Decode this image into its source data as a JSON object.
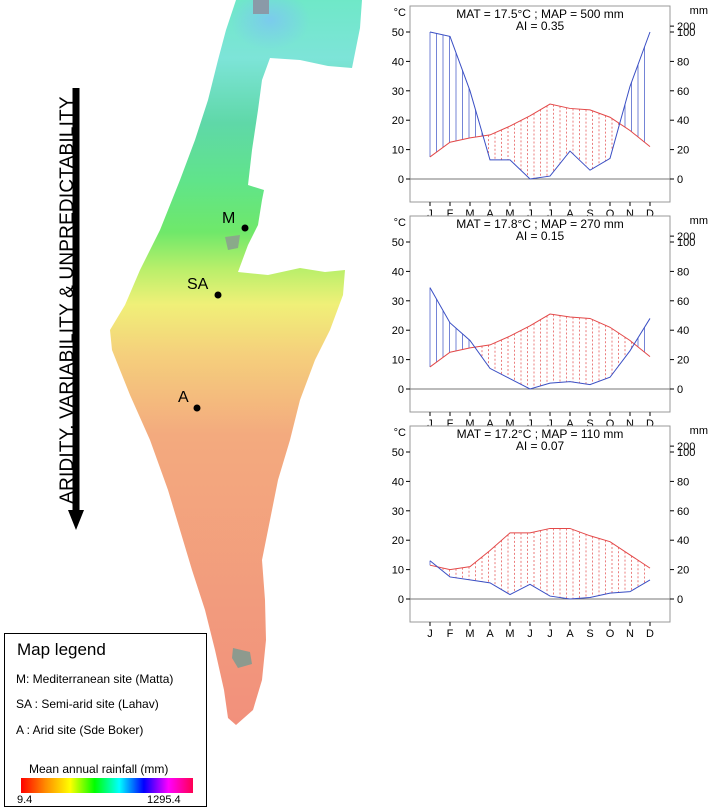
{
  "arrow_label": "ARIDITY, VARIABILITY & UNPREDICTABILITY",
  "sites": [
    {
      "id": "M",
      "label": "M"
    },
    {
      "id": "SA",
      "label": "SA"
    },
    {
      "id": "A",
      "label": "A"
    }
  ],
  "legend": {
    "title": "Map legend",
    "lines": [
      "M: Mediterranean site (Matta)",
      "SA : Semi-arid site (Lahav)",
      "A : Arid site (Sde Boker)"
    ],
    "colorbar": {
      "title": "Mean annual rainfall (mm)",
      "min": "9.4",
      "max": "1295.4",
      "colors": [
        "#ff0000",
        "#ff8c00",
        "#ffff00",
        "#00ff00",
        "#00ffff",
        "#0000ff",
        "#ff00ff",
        "#ff0050"
      ]
    }
  },
  "colors": {
    "temperature": "#e34848",
    "precipitation": "#3a4fc4"
  },
  "chart_data": [
    {
      "type": "line",
      "title": "MAT = 17.5°C ; MAP =  500 mm",
      "subtitle": "AI = 0.35",
      "y_left_label": "°C",
      "y_right_label": "mm",
      "categories": [
        "J",
        "F",
        "M",
        "A",
        "M",
        "J",
        "J",
        "A",
        "S",
        "O",
        "N",
        "D"
      ],
      "y_left_ticks": [
        0,
        10,
        20,
        30,
        40,
        50
      ],
      "y_right_ticks": [
        0,
        20,
        40,
        60,
        80,
        100,
        200
      ],
      "ylim": [
        0,
        52
      ],
      "series": [
        {
          "values": [
            7.5,
            12.5,
            14,
            15,
            18,
            21.5,
            25.5,
            24,
            23.5,
            21,
            16.5,
            11
          ]
        },
        {
          "values": [
            100,
            97,
            60,
            13,
            13,
            0,
            2,
            19,
            6,
            14,
            63,
            100
          ]
        }
      ]
    },
    {
      "type": "line",
      "title": "MAT = 17.8°C ; MAP =  270 mm",
      "subtitle": "AI = 0.15",
      "y_left_label": "°C",
      "y_right_label": "mm",
      "categories": [
        "J",
        "F",
        "M",
        "A",
        "M",
        "J",
        "J",
        "A",
        "S",
        "O",
        "N",
        "D"
      ],
      "y_left_ticks": [
        0,
        10,
        20,
        30,
        40,
        50
      ],
      "y_right_ticks": [
        0,
        20,
        40,
        60,
        80,
        100,
        200
      ],
      "ylim": [
        0,
        52
      ],
      "series": [
        {
          "values": [
            7.5,
            12.5,
            14,
            15,
            18,
            21.5,
            25.5,
            24.5,
            24,
            21,
            16.5,
            11
          ]
        },
        {
          "values": [
            69,
            45,
            33,
            14,
            7,
            0,
            4,
            5,
            3,
            8,
            26,
            48
          ]
        }
      ]
    },
    {
      "type": "line",
      "title": "MAT = 17.2°C ; MAP =  110 mm",
      "subtitle": "AI = 0.07",
      "y_left_label": "°C",
      "y_right_label": "mm",
      "categories": [
        "J",
        "F",
        "M",
        "A",
        "M",
        "J",
        "J",
        "A",
        "S",
        "O",
        "N",
        "D"
      ],
      "y_left_ticks": [
        0,
        10,
        20,
        30,
        40,
        50
      ],
      "y_right_ticks": [
        0,
        20,
        40,
        60,
        80,
        100,
        200
      ],
      "ylim": [
        0,
        52
      ],
      "series": [
        {
          "values": [
            11.5,
            10,
            11,
            16.5,
            22.5,
            22.5,
            24,
            24,
            21.5,
            19.5,
            15,
            10.5
          ]
        },
        {
          "values": [
            26,
            15,
            13,
            11,
            3,
            10,
            2,
            0,
            1,
            4,
            5,
            13
          ]
        }
      ]
    }
  ]
}
